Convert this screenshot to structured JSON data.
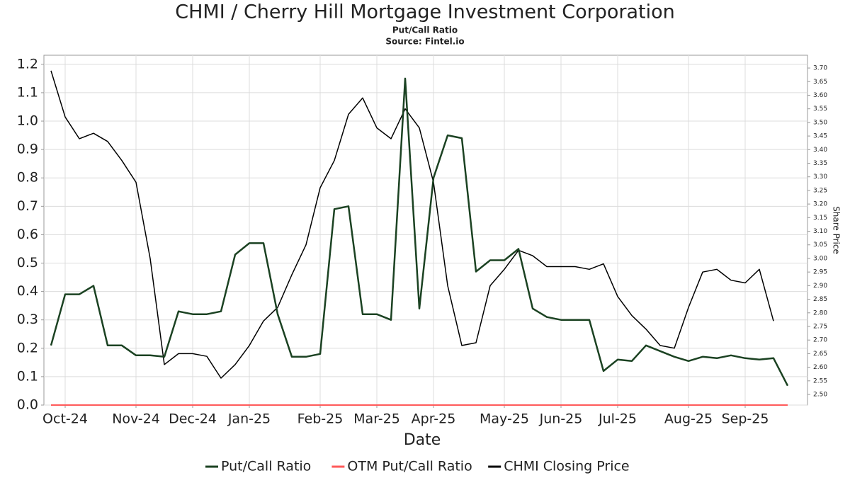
{
  "chart_data": {
    "type": "line",
    "title": "CHMI / Cherry Hill Mortgage Investment Corporation",
    "subtitle": "Put/Call Ratio",
    "source": "Source: Fintel.io",
    "x_label": "Date",
    "y2_label": "Share Price",
    "grid": true,
    "legend": "bottom",
    "categories": [
      null,
      "Oct-24",
      null,
      null,
      null,
      null,
      "Nov-24",
      null,
      null,
      null,
      "Dec-24",
      null,
      null,
      null,
      "Jan-25",
      null,
      null,
      null,
      null,
      "Feb-25",
      null,
      null,
      null,
      "Mar-25",
      null,
      null,
      null,
      "Apr-25",
      null,
      null,
      null,
      null,
      "May-25",
      null,
      null,
      null,
      "Jun-25",
      null,
      null,
      null,
      "Jul-25",
      null,
      null,
      null,
      null,
      "Aug-25",
      null,
      null,
      null,
      "Sep-25",
      null,
      null,
      null
    ],
    "series": [
      {
        "name": "Put/Call Ratio",
        "color": "#1b4222",
        "width": 2.5,
        "values": [
          0.21,
          0.39,
          0.39,
          0.42,
          0.21,
          0.21,
          0.175,
          0.175,
          0.17,
          0.33,
          0.32,
          0.32,
          0.33,
          0.53,
          0.57,
          0.57,
          0.32,
          0.17,
          0.17,
          0.18,
          0.69,
          0.7,
          0.32,
          0.32,
          0.3,
          1.15,
          0.34,
          0.8,
          0.95,
          0.94,
          0.47,
          0.51,
          0.51,
          0.55,
          0.34,
          0.31,
          0.3,
          0.3,
          0.3,
          0.12,
          0.16,
          0.155,
          0.21,
          0.19,
          0.17,
          0.155,
          0.17,
          0.165,
          0.175,
          0.165,
          0.16,
          0.165,
          0.068
        ]
      },
      {
        "name": "OTM Put/Call Ratio",
        "color": "#ff5a5a",
        "width": 2,
        "values": [
          0,
          0,
          0,
          0,
          0,
          0,
          0,
          0,
          0,
          0,
          0,
          0,
          0,
          0,
          0,
          0,
          0,
          0,
          0,
          0,
          0,
          0,
          0,
          0,
          0,
          0,
          0,
          0,
          0,
          0,
          0,
          0,
          0,
          0,
          0,
          0,
          0,
          0,
          0,
          0,
          0,
          0,
          0,
          0,
          0,
          0,
          0,
          0,
          0,
          0,
          0,
          0,
          0
        ]
      },
      {
        "name": "CHMI Closing Price",
        "color": "#000000",
        "width": 1.5,
        "axis": "y2",
        "values": [
          3.69,
          3.52,
          3.44,
          3.46,
          3.43,
          3.36,
          3.28,
          3.0,
          2.61,
          2.65,
          2.65,
          2.64,
          2.56,
          2.61,
          2.68,
          2.77,
          2.82,
          2.94,
          3.05,
          3.26,
          3.36,
          3.53,
          3.59,
          3.48,
          3.44,
          3.55,
          3.48,
          3.28,
          2.9,
          2.68,
          2.69,
          2.9,
          2.96,
          3.03,
          3.01,
          2.97,
          2.97,
          2.97,
          2.96,
          2.98,
          2.86,
          2.79,
          2.74,
          2.68,
          2.67,
          2.82,
          2.95,
          2.96,
          2.92,
          2.91,
          2.96,
          2.77,
          null
        ]
      }
    ],
    "ylim": [
      0,
      1.232
    ],
    "yticks": [
      {
        "value": 0,
        "label": "0.0"
      },
      0.1,
      0.2,
      0.3,
      0.4,
      0.5,
      0.6,
      0.7,
      0.8,
      0.9,
      {
        "value": 1,
        "label": "1.0"
      },
      1.1,
      1.2
    ],
    "y2lim": [
      2.461,
      3.747
    ],
    "y2ticks": [
      {
        "value": 2.5,
        "label": "2.50"
      },
      2.55,
      {
        "value": 2.6,
        "label": "2.60"
      },
      2.65,
      {
        "value": 2.7,
        "label": "2.70"
      },
      2.75,
      {
        "value": 2.8,
        "label": "2.80"
      },
      2.85,
      {
        "value": 2.9,
        "label": "2.90"
      },
      2.95,
      {
        "value": 3,
        "label": "3.00"
      },
      3.05,
      {
        "value": 3.1,
        "label": "3.10"
      },
      3.15,
      {
        "value": 3.2,
        "label": "3.20"
      },
      3.25,
      {
        "value": 3.3,
        "label": "3.30"
      },
      3.35,
      {
        "value": 3.4,
        "label": "3.40"
      },
      3.45,
      {
        "value": 3.5,
        "label": "3.50"
      },
      3.55,
      {
        "value": 3.6,
        "label": "3.60"
      },
      3.65,
      {
        "value": 3.7,
        "label": "3.70"
      }
    ]
  }
}
